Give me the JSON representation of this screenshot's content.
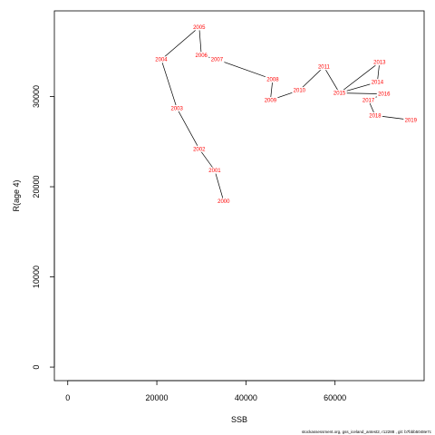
{
  "chart_data": {
    "type": "line",
    "xlabel": "SSB",
    "ylabel": "R(age 4)",
    "xlim": [
      -3000,
      80000
    ],
    "ylim": [
      -1500,
      39500
    ],
    "x_ticks": [
      "0",
      "20000",
      "40000",
      "60000"
    ],
    "x_tick_values": [
      0,
      20000,
      40000,
      60000
    ],
    "y_ticks": [
      "0",
      "10000",
      "20000",
      "30000"
    ],
    "y_tick_values": [
      0,
      10000,
      20000,
      30000
    ],
    "grid": false,
    "line_color": "#000000",
    "label_color": "#ff0000",
    "points": [
      {
        "year": "2000",
        "x": 35000,
        "y": 18400
      },
      {
        "year": "2001",
        "x": 33000,
        "y": 21800
      },
      {
        "year": "2002",
        "x": 29500,
        "y": 24200
      },
      {
        "year": "2003",
        "x": 24500,
        "y": 28700
      },
      {
        "year": "2004",
        "x": 21000,
        "y": 34100
      },
      {
        "year": "2005",
        "x": 29500,
        "y": 37700
      },
      {
        "year": "2006",
        "x": 30000,
        "y": 34600
      },
      {
        "year": "2007",
        "x": 33500,
        "y": 34100
      },
      {
        "year": "2008",
        "x": 46000,
        "y": 31900
      },
      {
        "year": "2009",
        "x": 45500,
        "y": 29600
      },
      {
        "year": "2010",
        "x": 52000,
        "y": 30700
      },
      {
        "year": "2011",
        "x": 57500,
        "y": 33300
      },
      {
        "year": "2012",
        "x": 61000,
        "y": 30400
      },
      {
        "year": "2013",
        "x": 70000,
        "y": 33800
      },
      {
        "year": "2014",
        "x": 69500,
        "y": 31600
      },
      {
        "year": "2015",
        "x": 61000,
        "y": 30400
      },
      {
        "year": "2016",
        "x": 71000,
        "y": 30300
      },
      {
        "year": "2017",
        "x": 67500,
        "y": 29600
      },
      {
        "year": "2018",
        "x": 69000,
        "y": 27900
      },
      {
        "year": "2019",
        "x": 77000,
        "y": 27400
      }
    ]
  },
  "footer": {
    "text": "stockassessment.org,  gss_iceland_antest2,  r12288 ,  git: b7bbb5048e7c"
  }
}
